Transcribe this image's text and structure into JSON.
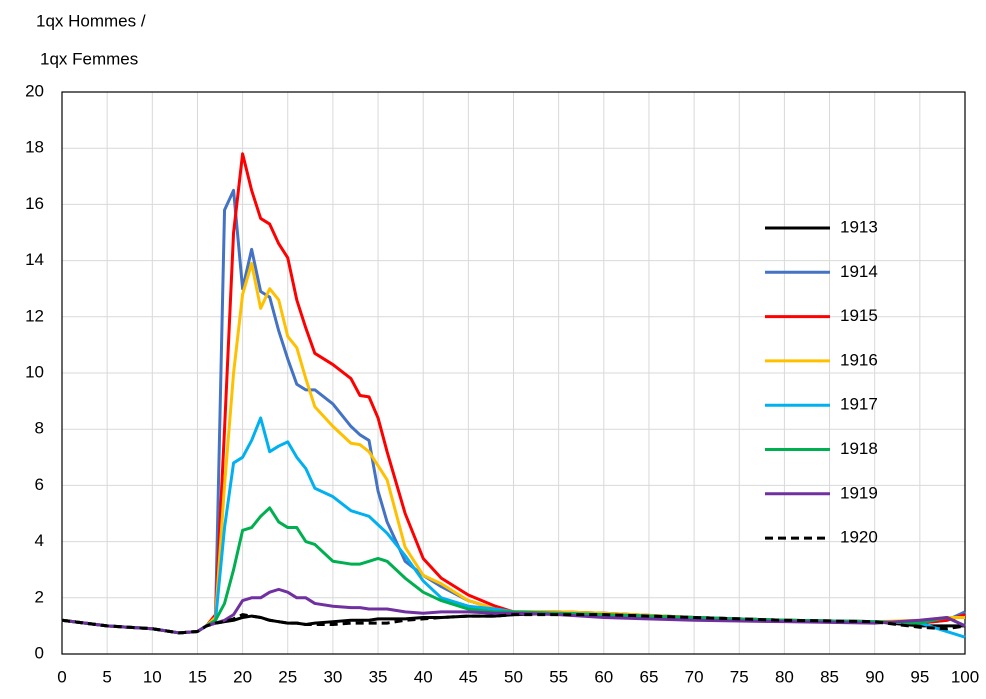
{
  "chart_data": {
    "type": "line",
    "y_label_lines": [
      "1qx Hommes /",
      "1qx Femmes"
    ],
    "x": [
      0,
      5,
      10,
      13,
      15,
      16,
      17,
      18,
      19,
      20,
      21,
      22,
      23,
      24,
      25,
      26,
      27,
      28,
      30,
      32,
      33,
      34,
      35,
      36,
      38,
      40,
      42,
      45,
      48,
      50,
      55,
      60,
      70,
      80,
      90,
      95,
      98,
      100
    ],
    "series": [
      {
        "name": "1913",
        "color": "#000000",
        "dashed": false,
        "values": [
          1.2,
          1.0,
          0.9,
          0.75,
          0.8,
          1.0,
          1.1,
          1.15,
          1.2,
          1.3,
          1.35,
          1.3,
          1.2,
          1.15,
          1.1,
          1.1,
          1.05,
          1.1,
          1.15,
          1.2,
          1.2,
          1.2,
          1.25,
          1.25,
          1.25,
          1.3,
          1.3,
          1.35,
          1.35,
          1.4,
          1.45,
          1.4,
          1.3,
          1.2,
          1.15,
          1.0,
          1.0,
          1.0
        ]
      },
      {
        "name": "1914",
        "color": "#4472c4",
        "dashed": false,
        "values": [
          1.2,
          1.0,
          0.9,
          0.75,
          0.8,
          1.0,
          1.3,
          15.8,
          16.5,
          13.0,
          14.4,
          12.9,
          12.7,
          11.5,
          10.5,
          9.6,
          9.4,
          9.4,
          8.9,
          8.1,
          7.8,
          7.6,
          5.8,
          4.7,
          3.3,
          2.8,
          2.4,
          1.9,
          1.6,
          1.5,
          1.5,
          1.45,
          1.3,
          1.2,
          1.15,
          1.1,
          1.2,
          1.5
        ]
      },
      {
        "name": "1915",
        "color": "#ff0000",
        "dashed": false,
        "values": [
          1.2,
          1.0,
          0.9,
          0.75,
          0.8,
          1.0,
          1.4,
          8.0,
          15.0,
          17.8,
          16.5,
          15.5,
          15.3,
          14.6,
          14.1,
          12.6,
          11.6,
          10.7,
          10.3,
          9.8,
          9.2,
          9.15,
          8.4,
          7.2,
          5.0,
          3.4,
          2.7,
          2.1,
          1.7,
          1.5,
          1.5,
          1.45,
          1.3,
          1.2,
          1.15,
          1.1,
          1.2,
          1.4
        ]
      },
      {
        "name": "1916",
        "color": "#ffc000",
        "dashed": false,
        "values": [
          1.2,
          1.0,
          0.9,
          0.75,
          0.8,
          1.0,
          1.3,
          6.0,
          10.0,
          12.8,
          13.9,
          12.3,
          13.0,
          12.6,
          11.3,
          10.9,
          9.8,
          8.8,
          8.1,
          7.5,
          7.45,
          7.2,
          6.7,
          6.2,
          3.8,
          2.8,
          2.5,
          1.9,
          1.6,
          1.5,
          1.5,
          1.45,
          1.3,
          1.2,
          1.15,
          1.2,
          1.3,
          1.3
        ]
      },
      {
        "name": "1917",
        "color": "#00b0f0",
        "dashed": false,
        "values": [
          1.2,
          1.0,
          0.9,
          0.75,
          0.8,
          1.0,
          1.2,
          4.5,
          6.8,
          7.0,
          7.6,
          8.4,
          7.2,
          7.4,
          7.55,
          7.0,
          6.6,
          5.9,
          5.6,
          5.1,
          5.0,
          4.9,
          4.6,
          4.3,
          3.5,
          2.6,
          2.0,
          1.7,
          1.6,
          1.5,
          1.45,
          1.4,
          1.3,
          1.2,
          1.15,
          1.1,
          0.8,
          0.6
        ]
      },
      {
        "name": "1918",
        "color": "#00b050",
        "dashed": false,
        "values": [
          1.2,
          1.0,
          0.9,
          0.75,
          0.8,
          1.0,
          1.2,
          1.8,
          3.0,
          4.4,
          4.5,
          4.9,
          5.2,
          4.7,
          4.5,
          4.5,
          4.0,
          3.9,
          3.3,
          3.2,
          3.2,
          3.3,
          3.4,
          3.3,
          2.7,
          2.2,
          1.9,
          1.6,
          1.5,
          1.5,
          1.45,
          1.4,
          1.3,
          1.2,
          1.15,
          1.1,
          1.3,
          1.0
        ]
      },
      {
        "name": "1919",
        "color": "#7030a0",
        "dashed": false,
        "values": [
          1.2,
          1.0,
          0.9,
          0.75,
          0.8,
          1.0,
          1.1,
          1.2,
          1.4,
          1.9,
          2.0,
          2.0,
          2.2,
          2.3,
          2.2,
          2.0,
          2.0,
          1.8,
          1.7,
          1.65,
          1.65,
          1.6,
          1.6,
          1.6,
          1.5,
          1.45,
          1.5,
          1.5,
          1.45,
          1.45,
          1.4,
          1.3,
          1.2,
          1.15,
          1.1,
          1.2,
          1.3,
          1.0
        ]
      },
      {
        "name": "1920",
        "color": "#000000",
        "dashed": true,
        "values": [
          1.2,
          1.0,
          0.9,
          0.75,
          0.8,
          1.0,
          1.1,
          1.15,
          1.25,
          1.4,
          1.35,
          1.3,
          1.2,
          1.15,
          1.1,
          1.1,
          1.05,
          1.05,
          1.05,
          1.1,
          1.1,
          1.1,
          1.1,
          1.1,
          1.2,
          1.25,
          1.3,
          1.35,
          1.35,
          1.4,
          1.4,
          1.4,
          1.3,
          1.2,
          1.15,
          0.95,
          0.9,
          1.0
        ]
      }
    ],
    "xlim": [
      0,
      100
    ],
    "xticks": [
      0,
      5,
      10,
      15,
      20,
      25,
      30,
      35,
      40,
      45,
      50,
      55,
      60,
      65,
      70,
      75,
      80,
      85,
      90,
      95,
      100
    ],
    "ylim": [
      0,
      20
    ],
    "yticks": [
      0,
      2,
      4,
      6,
      8,
      10,
      12,
      14,
      16,
      18,
      20
    ],
    "grid": true,
    "legend": "right"
  }
}
